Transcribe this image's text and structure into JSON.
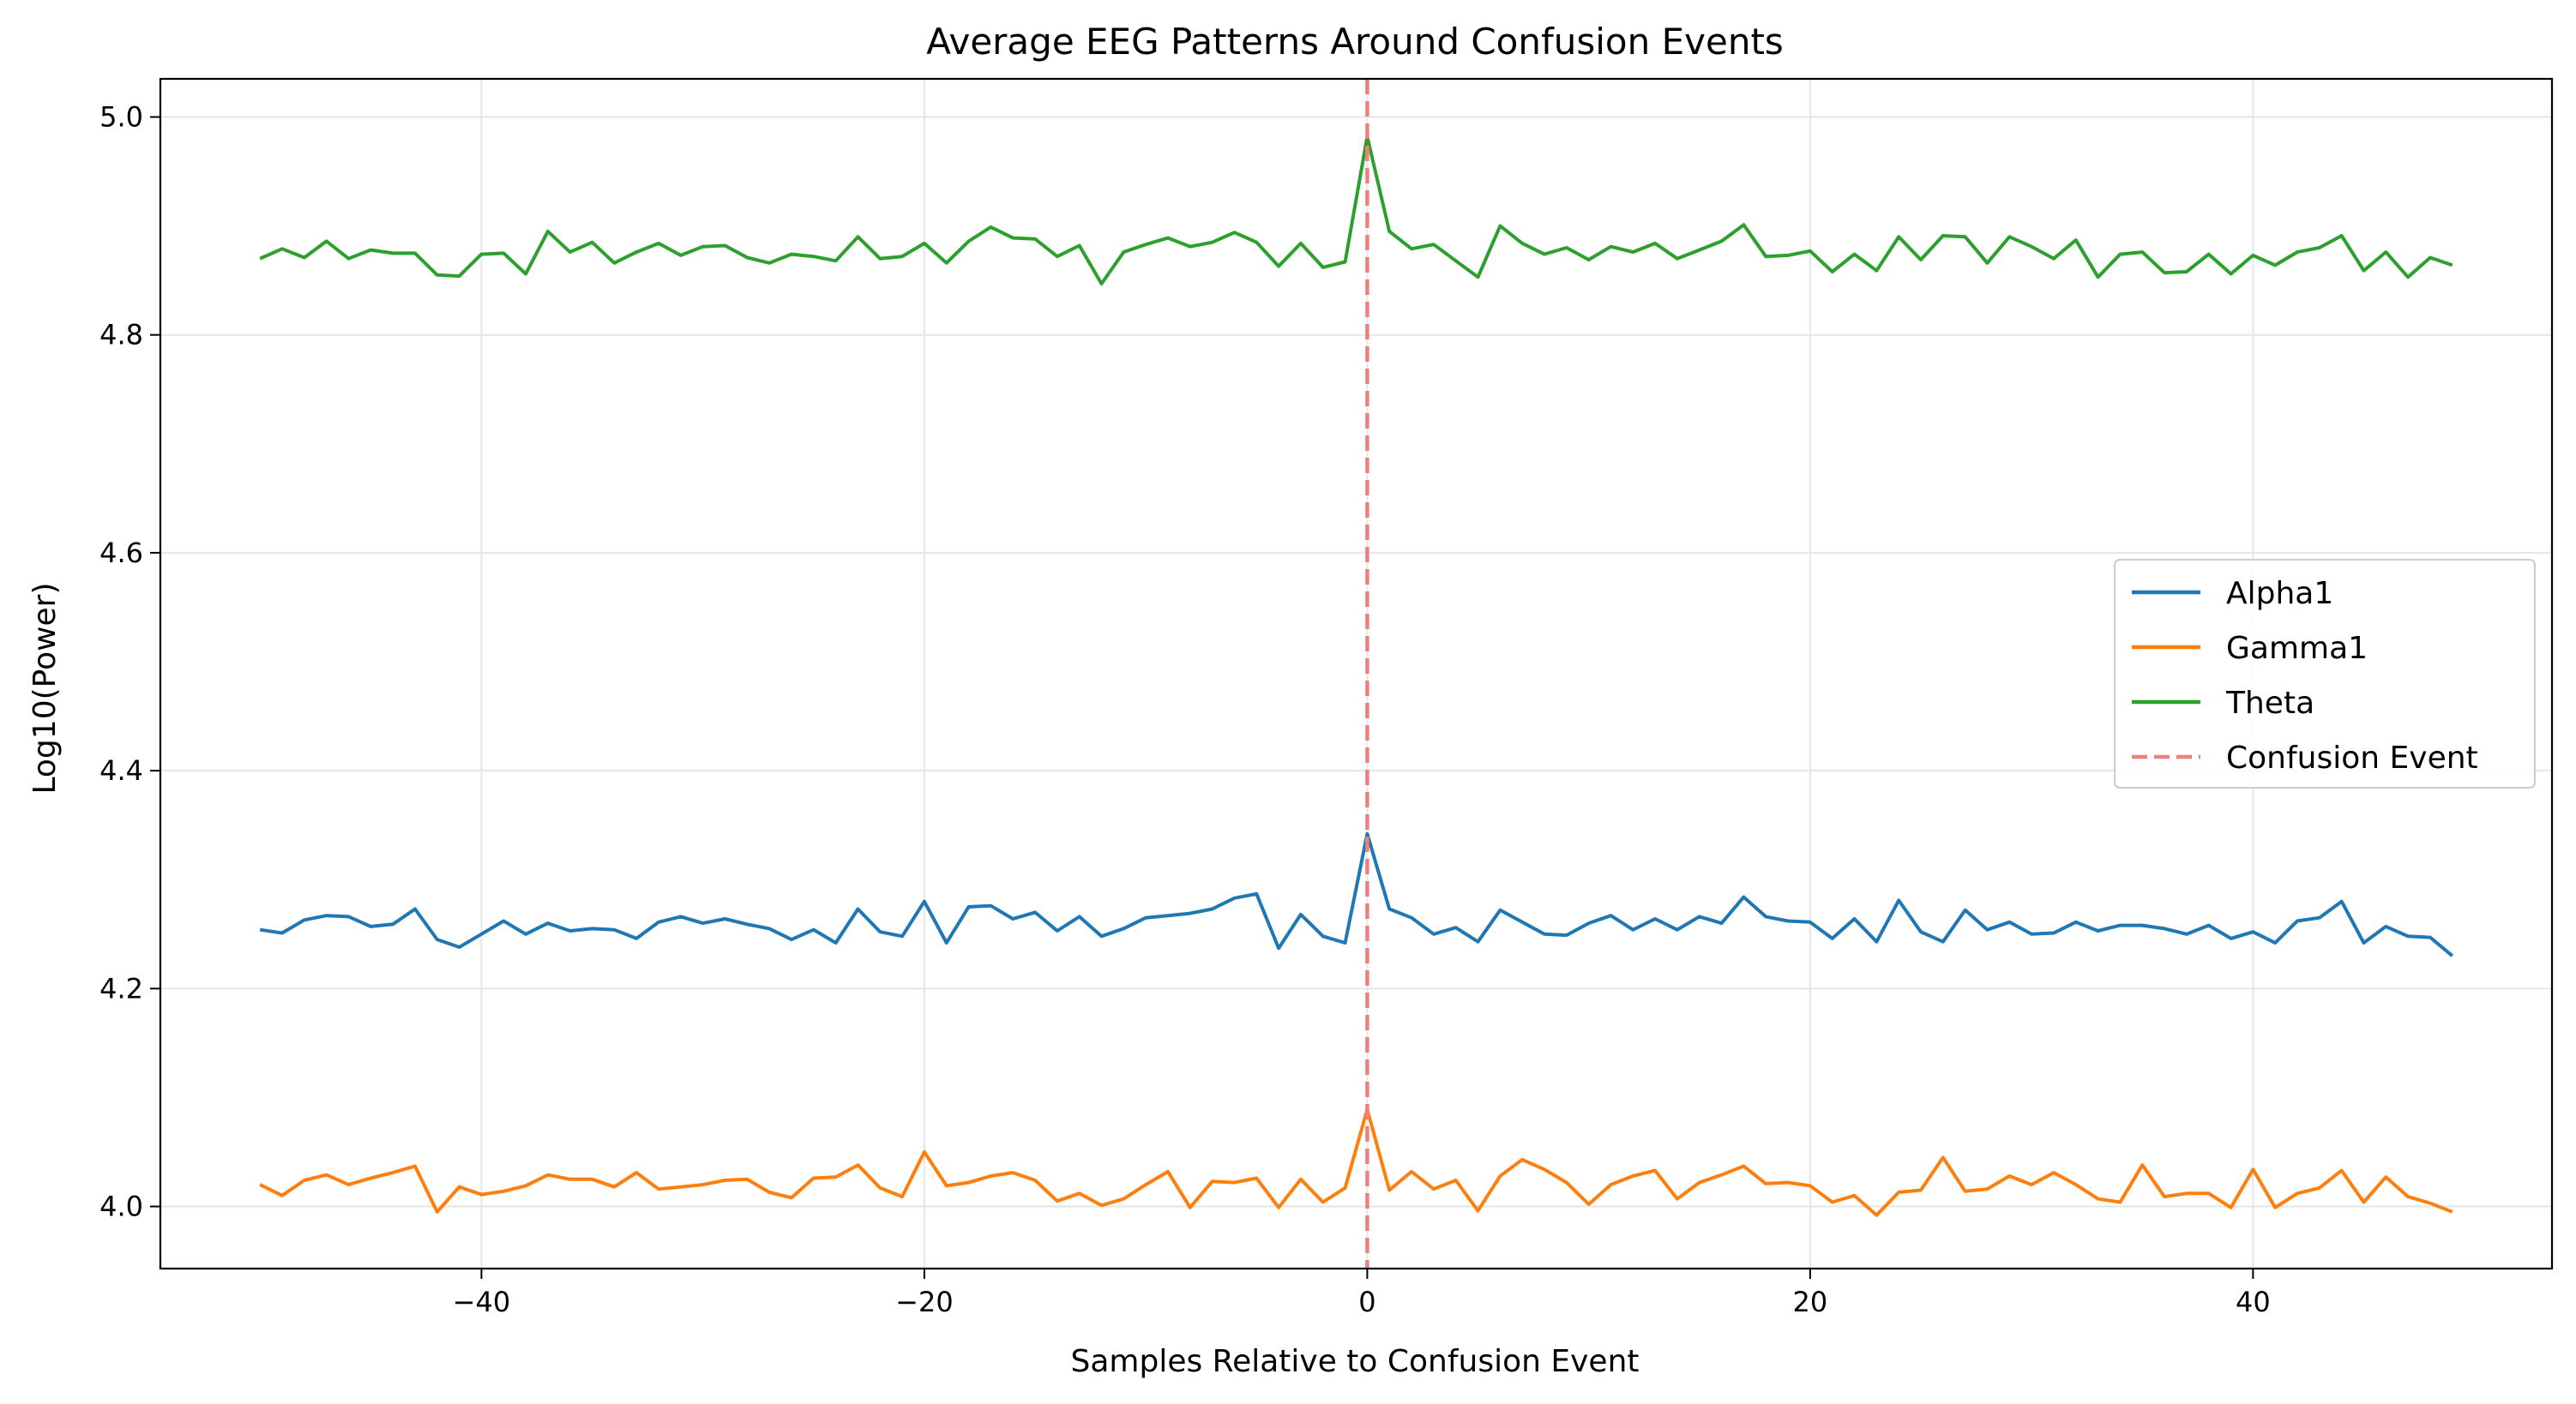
{
  "chart_data": {
    "type": "line",
    "title": "Average EEG Patterns Around Confusion Events",
    "xlabel": "Samples Relative to Confusion Event",
    "ylabel": "Log10(Power)",
    "xlim": [
      -54.5,
      53.5
    ],
    "ylim": [
      3.943,
      5.035
    ],
    "xticks": [
      -40,
      -20,
      0,
      20,
      40
    ],
    "xtick_labels": [
      "−40",
      "−20",
      "0",
      "20",
      "40"
    ],
    "yticks": [
      4.0,
      4.2,
      4.4,
      4.6,
      4.8,
      5.0
    ],
    "ytick_labels": [
      "4.0",
      "4.2",
      "4.4",
      "4.6",
      "4.8",
      "5.0"
    ],
    "grid": true,
    "legend_position": "center-right",
    "x_start": -50,
    "series": [
      {
        "name": "Alpha1",
        "color": "#1f77b4",
        "values": [
          4.254,
          4.251,
          4.263,
          4.267,
          4.266,
          4.257,
          4.259,
          4.273,
          4.245,
          4.238,
          4.25,
          4.262,
          4.25,
          4.26,
          4.253,
          4.255,
          4.254,
          4.246,
          4.261,
          4.266,
          4.26,
          4.264,
          4.259,
          4.255,
          4.245,
          4.254,
          4.242,
          4.273,
          4.252,
          4.248,
          4.28,
          4.242,
          4.275,
          4.276,
          4.264,
          4.27,
          4.253,
          4.266,
          4.248,
          4.255,
          4.265,
          4.267,
          4.269,
          4.273,
          4.283,
          4.287,
          4.237,
          4.268,
          4.248,
          4.242,
          4.342,
          4.273,
          4.265,
          4.25,
          4.256,
          4.243,
          4.272,
          4.261,
          4.25,
          4.249,
          4.26,
          4.267,
          4.254,
          4.264,
          4.254,
          4.266,
          4.26,
          4.284,
          4.266,
          4.262,
          4.261,
          4.246,
          4.264,
          4.243,
          4.281,
          4.252,
          4.243,
          4.272,
          4.254,
          4.261,
          4.25,
          4.251,
          4.261,
          4.253,
          4.258,
          4.258,
          4.255,
          4.25,
          4.258,
          4.246,
          4.252,
          4.242,
          4.262,
          4.265,
          4.28,
          4.242,
          4.257,
          4.248,
          4.247,
          4.23
        ]
      },
      {
        "name": "Gamma1",
        "color": "#ff7f0e",
        "values": [
          4.02,
          4.01,
          4.024,
          4.029,
          4.02,
          4.026,
          4.031,
          4.037,
          3.995,
          4.018,
          4.011,
          4.014,
          4.019,
          4.029,
          4.025,
          4.025,
          4.018,
          4.031,
          4.016,
          4.018,
          4.02,
          4.024,
          4.025,
          4.013,
          4.008,
          4.026,
          4.027,
          4.038,
          4.017,
          4.009,
          4.05,
          4.019,
          4.022,
          4.028,
          4.031,
          4.024,
          4.005,
          4.012,
          4.001,
          4.007,
          4.02,
          4.032,
          3.999,
          4.023,
          4.022,
          4.026,
          3.999,
          4.025,
          4.004,
          4.017,
          4.089,
          4.015,
          4.032,
          4.016,
          4.024,
          3.996,
          4.028,
          4.043,
          4.034,
          4.022,
          4.002,
          4.02,
          4.028,
          4.033,
          4.007,
          4.022,
          4.029,
          4.037,
          4.021,
          4.022,
          4.019,
          4.004,
          4.01,
          3.992,
          4.013,
          4.015,
          4.045,
          4.014,
          4.016,
          4.028,
          4.02,
          4.031,
          4.02,
          4.007,
          4.004,
          4.038,
          4.009,
          4.012,
          4.012,
          3.999,
          4.034,
          3.999,
          4.012,
          4.017,
          4.033,
          4.004,
          4.027,
          4.009,
          4.003,
          3.995
        ]
      },
      {
        "name": "Theta",
        "color": "#2ca02c",
        "values": [
          4.87,
          4.879,
          4.871,
          4.886,
          4.87,
          4.878,
          4.875,
          4.875,
          4.855,
          4.854,
          4.874,
          4.875,
          4.856,
          4.895,
          4.876,
          4.885,
          4.866,
          4.876,
          4.884,
          4.873,
          4.881,
          4.882,
          4.871,
          4.866,
          4.874,
          4.872,
          4.868,
          4.89,
          4.87,
          4.872,
          4.884,
          4.866,
          4.886,
          4.899,
          4.889,
          4.888,
          4.872,
          4.882,
          4.847,
          4.876,
          4.883,
          4.889,
          4.881,
          4.885,
          4.894,
          4.885,
          4.863,
          4.884,
          4.862,
          4.867,
          4.982,
          4.895,
          4.879,
          4.883,
          4.868,
          4.853,
          4.9,
          4.884,
          4.874,
          4.88,
          4.869,
          4.881,
          4.876,
          4.884,
          4.87,
          4.878,
          4.886,
          4.901,
          4.872,
          4.873,
          4.877,
          4.858,
          4.874,
          4.859,
          4.89,
          4.869,
          4.891,
          4.89,
          4.866,
          4.89,
          4.881,
          4.87,
          4.887,
          4.853,
          4.874,
          4.876,
          4.857,
          4.858,
          4.874,
          4.856,
          4.873,
          4.864,
          4.876,
          4.88,
          4.891,
          4.859,
          4.876,
          4.853,
          4.871,
          4.864
        ]
      }
    ],
    "event_line": {
      "name": "Confusion Event",
      "x": 0,
      "color": "#f08080",
      "style": "dashed"
    }
  }
}
